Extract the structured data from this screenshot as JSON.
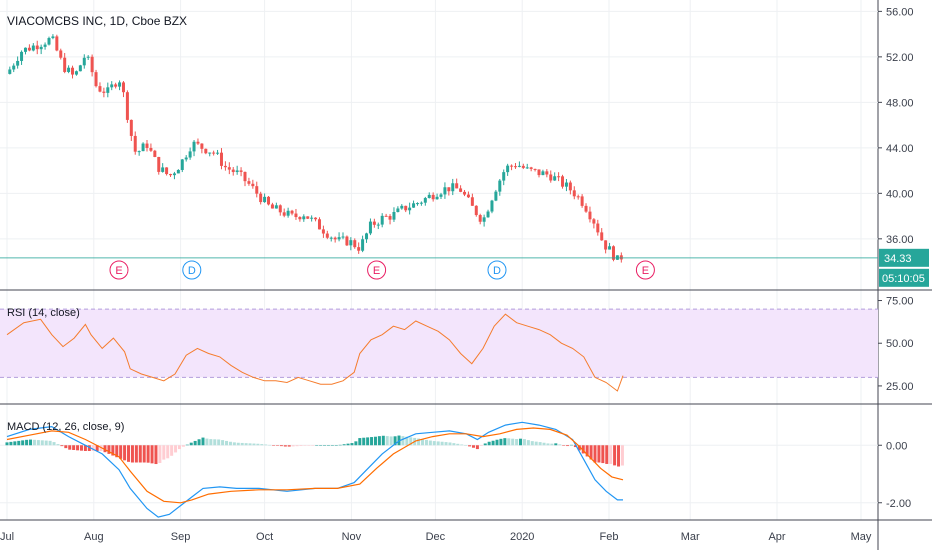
{
  "chart_data": [
    {
      "type": "candlestick",
      "title": "VIACOMCBS INC, 1D, Cboe BZX",
      "y_ticks": [
        "56.00",
        "52.00",
        "48.00",
        "44.00",
        "40.00",
        "36.00"
      ],
      "ylim": [
        31.5,
        57.0
      ],
      "last_price": "34.33",
      "countdown": "05:10:05",
      "x_ticks": [
        "Jul",
        "Aug",
        "Sep",
        "Oct",
        "Nov",
        "Dec",
        "2020",
        "Feb",
        "Mar",
        "Apr",
        "May"
      ],
      "x_tick_days": [
        0,
        31,
        62,
        92,
        123,
        153,
        184,
        215,
        244,
        275,
        305
      ],
      "close_path": [
        [
          0,
          50.5
        ],
        [
          5,
          52.5
        ],
        [
          12,
          53.2
        ],
        [
          16,
          53.6
        ],
        [
          20,
          51.2
        ],
        [
          24,
          50.2
        ],
        [
          28,
          52.2
        ],
        [
          30,
          51.0
        ],
        [
          32,
          49.3
        ],
        [
          36,
          48.9
        ],
        [
          40,
          50.2
        ],
        [
          42,
          48.3
        ],
        [
          44,
          45.5
        ],
        [
          46,
          43.5
        ],
        [
          50,
          44.3
        ],
        [
          54,
          42.3
        ],
        [
          58,
          41.5
        ],
        [
          62,
          42.6
        ],
        [
          66,
          44.4
        ],
        [
          70,
          44.0
        ],
        [
          74,
          43.6
        ],
        [
          78,
          42.3
        ],
        [
          82,
          41.8
        ],
        [
          86,
          40.9
        ],
        [
          90,
          39.8
        ],
        [
          94,
          38.7
        ],
        [
          98,
          38.4
        ],
        [
          102,
          37.9
        ],
        [
          106,
          38.2
        ],
        [
          110,
          37.4
        ],
        [
          114,
          36.6
        ],
        [
          118,
          35.8
        ],
        [
          122,
          35.8
        ],
        [
          126,
          35.2
        ],
        [
          130,
          37.2
        ],
        [
          134,
          37.8
        ],
        [
          138,
          38.1
        ],
        [
          142,
          38.7
        ],
        [
          146,
          39.1
        ],
        [
          150,
          39.6
        ],
        [
          154,
          40.2
        ],
        [
          158,
          40.5
        ],
        [
          162,
          40.3
        ],
        [
          166,
          38.8
        ],
        [
          170,
          37.6
        ],
        [
          174,
          40.2
        ],
        [
          178,
          42.2
        ],
        [
          182,
          42.6
        ],
        [
          186,
          42.0
        ],
        [
          190,
          41.8
        ],
        [
          194,
          41.6
        ],
        [
          198,
          40.9
        ],
        [
          202,
          40.2
        ],
        [
          206,
          39.1
        ],
        [
          210,
          37.4
        ],
        [
          213,
          35.6
        ],
        [
          216,
          34.8
        ],
        [
          218,
          34.1
        ],
        [
          219,
          34.5
        ],
        [
          220,
          34.33
        ]
      ],
      "events": [
        {
          "label": "E",
          "day": 40,
          "type": "earnings"
        },
        {
          "label": "D",
          "day": 66,
          "type": "dividend"
        },
        {
          "label": "E",
          "day": 132,
          "type": "earnings"
        },
        {
          "label": "D",
          "day": 175,
          "type": "dividend"
        },
        {
          "label": "E",
          "day": 228,
          "type": "earnings"
        }
      ],
      "colors": {
        "up": "#26a69a",
        "down": "#ef5350"
      }
    },
    {
      "type": "line",
      "title": "RSI (14, close)",
      "y_ticks": [
        "75.00",
        "50.00",
        "25.00"
      ],
      "ylim": [
        15,
        80
      ],
      "band": [
        30,
        70
      ],
      "series": [
        {
          "color": "#f57c2d",
          "points": [
            [
              0,
              55
            ],
            [
              6,
              62
            ],
            [
              12,
              64
            ],
            [
              16,
              55
            ],
            [
              20,
              48
            ],
            [
              24,
              53
            ],
            [
              28,
              61
            ],
            [
              30,
              55
            ],
            [
              34,
              47
            ],
            [
              38,
              53
            ],
            [
              42,
              45
            ],
            [
              44,
              35
            ],
            [
              48,
              32
            ],
            [
              52,
              30
            ],
            [
              56,
              28
            ],
            [
              60,
              32
            ],
            [
              64,
              43
            ],
            [
              68,
              47
            ],
            [
              72,
              44
            ],
            [
              76,
              42
            ],
            [
              80,
              37
            ],
            [
              84,
              33
            ],
            [
              88,
              30
            ],
            [
              92,
              28
            ],
            [
              96,
              28
            ],
            [
              100,
              27
            ],
            [
              104,
              30
            ],
            [
              108,
              28
            ],
            [
              112,
              26
            ],
            [
              116,
              26
            ],
            [
              120,
              28
            ],
            [
              124,
              33
            ],
            [
              126,
              44
            ],
            [
              130,
              52
            ],
            [
              134,
              55
            ],
            [
              138,
              60
            ],
            [
              142,
              58
            ],
            [
              146,
              63
            ],
            [
              150,
              60
            ],
            [
              154,
              57
            ],
            [
              158,
              52
            ],
            [
              162,
              44
            ],
            [
              166,
              38
            ],
            [
              170,
              47
            ],
            [
              174,
              60
            ],
            [
              178,
              67
            ],
            [
              182,
              62
            ],
            [
              186,
              60
            ],
            [
              190,
              58
            ],
            [
              194,
              55
            ],
            [
              198,
              50
            ],
            [
              202,
              47
            ],
            [
              206,
              42
            ],
            [
              210,
              30
            ],
            [
              214,
              27
            ],
            [
              218,
              22
            ],
            [
              220,
              31
            ]
          ]
        }
      ]
    },
    {
      "type": "line",
      "title": "MACD (12, 26, close, 9)",
      "y_ticks": [
        "0.00",
        "-2.00"
      ],
      "ylim": [
        -2.6,
        1.4
      ],
      "series": [
        {
          "color": "#2196f3",
          "points": [
            [
              0,
              0.3
            ],
            [
              8,
              0.55
            ],
            [
              16,
              0.65
            ],
            [
              22,
              0.3
            ],
            [
              28,
              0.0
            ],
            [
              34,
              -0.3
            ],
            [
              40,
              -0.85
            ],
            [
              44,
              -1.5
            ],
            [
              50,
              -2.2
            ],
            [
              54,
              -2.5
            ],
            [
              58,
              -2.4
            ],
            [
              62,
              -2.1
            ],
            [
              66,
              -1.8
            ],
            [
              70,
              -1.5
            ],
            [
              76,
              -1.45
            ],
            [
              82,
              -1.5
            ],
            [
              90,
              -1.5
            ],
            [
              100,
              -1.6
            ],
            [
              110,
              -1.5
            ],
            [
              118,
              -1.5
            ],
            [
              124,
              -1.3
            ],
            [
              128,
              -0.9
            ],
            [
              134,
              -0.3
            ],
            [
              140,
              0.15
            ],
            [
              146,
              0.4
            ],
            [
              152,
              0.45
            ],
            [
              158,
              0.5
            ],
            [
              164,
              0.4
            ],
            [
              168,
              0.2
            ],
            [
              172,
              0.45
            ],
            [
              178,
              0.7
            ],
            [
              184,
              0.8
            ],
            [
              190,
              0.7
            ],
            [
              196,
              0.55
            ],
            [
              202,
              0.2
            ],
            [
              206,
              -0.5
            ],
            [
              210,
              -1.2
            ],
            [
              214,
              -1.6
            ],
            [
              218,
              -1.9
            ],
            [
              220,
              -1.9
            ]
          ]
        },
        {
          "color": "#ff6d00",
          "points": [
            [
              0,
              0.2
            ],
            [
              8,
              0.35
            ],
            [
              16,
              0.5
            ],
            [
              22,
              0.45
            ],
            [
              28,
              0.2
            ],
            [
              34,
              -0.1
            ],
            [
              40,
              -0.4
            ],
            [
              44,
              -0.9
            ],
            [
              50,
              -1.6
            ],
            [
              56,
              -1.95
            ],
            [
              62,
              -2.0
            ],
            [
              66,
              -1.9
            ],
            [
              72,
              -1.7
            ],
            [
              80,
              -1.6
            ],
            [
              90,
              -1.55
            ],
            [
              100,
              -1.55
            ],
            [
              110,
              -1.5
            ],
            [
              118,
              -1.5
            ],
            [
              126,
              -1.35
            ],
            [
              132,
              -0.8
            ],
            [
              138,
              -0.3
            ],
            [
              146,
              0.15
            ],
            [
              152,
              0.3
            ],
            [
              158,
              0.4
            ],
            [
              164,
              0.4
            ],
            [
              170,
              0.3
            ],
            [
              176,
              0.4
            ],
            [
              182,
              0.55
            ],
            [
              188,
              0.6
            ],
            [
              194,
              0.55
            ],
            [
              200,
              0.35
            ],
            [
              204,
              0.0
            ],
            [
              208,
              -0.4
            ],
            [
              212,
              -0.8
            ],
            [
              216,
              -1.1
            ],
            [
              220,
              -1.2
            ]
          ]
        }
      ],
      "histogram_colors": {
        "pos_up": "#26a69a",
        "pos_down": "#b2dfdb",
        "neg_down": "#ef5350",
        "neg_up": "#ffcdd2"
      }
    }
  ]
}
